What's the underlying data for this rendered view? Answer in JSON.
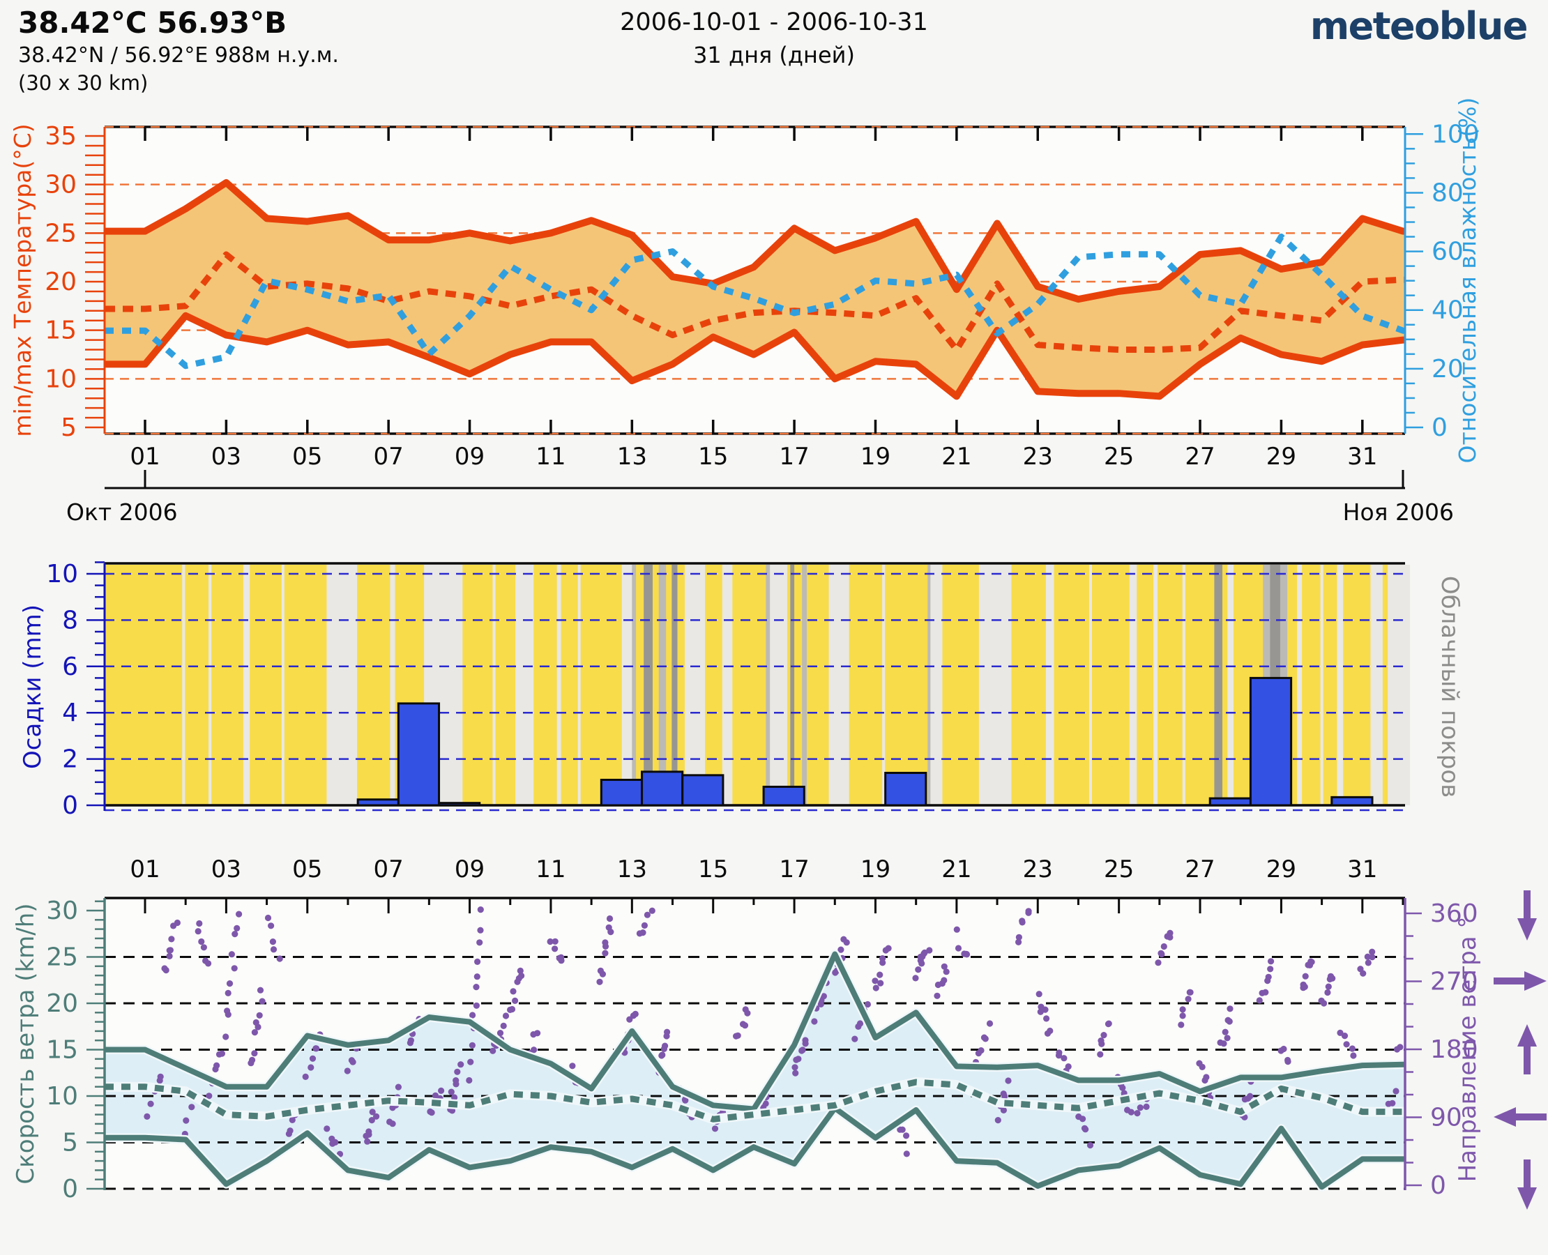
{
  "header": {
    "title": "38.42°С 56.93°В",
    "coords": "38.42°N / 56.92°E   988м н.у.м.",
    "grid_size": "(30 x 30 km)",
    "period": "2006-10-01 - 2006-10-31",
    "duration": "31 дня (дней)",
    "logo": "meteoblue"
  },
  "x_axis": {
    "day_labels": [
      "01",
      "03",
      "05",
      "07",
      "09",
      "11",
      "13",
      "15",
      "17",
      "19",
      "21",
      "23",
      "25",
      "27",
      "29",
      "31"
    ],
    "month_left": "Окт 2006",
    "month_right": "Ноя 2006"
  },
  "colors": {
    "page_bg": "#f6f6f4",
    "plot_bg": "#fcfcfa",
    "temp_line": "#e8420b",
    "temp_band": "#f5c577",
    "temp_grid": "#f0763a",
    "humidity": "#2f9fdf",
    "precip_bar": "#3351e3",
    "precip_axis": "#1414b8",
    "precip_grid": "#2a2ad0",
    "sun_yellow": "#f8dc4a",
    "cloud_light": "#e9e8e5",
    "cloud_medium": "#bcbab6",
    "cloud_dark": "#989692",
    "cloud_label": "#8c8c8a",
    "wind_line": "#4e7d78",
    "wind_band": "#ddeef6",
    "wind_dir": "#7e57ab",
    "frame": "#0b0b0b",
    "logo_blue": "#1c4068"
  },
  "chart_data": [
    {
      "id": "temperature_humidity",
      "type": "area",
      "y_left_label": "min/max Температура(°C)",
      "y_left_ticks": [
        5,
        10,
        15,
        20,
        25,
        30,
        35
      ],
      "y_left_range": [
        4.3,
        36.0
      ],
      "y_right_label": "Относительная влажность(%)",
      "y_right_ticks": [
        0,
        20,
        40,
        60,
        80,
        100
      ],
      "y_right_range": [
        0,
        100
      ],
      "days": [
        1,
        2,
        3,
        4,
        5,
        6,
        7,
        8,
        9,
        10,
        11,
        12,
        13,
        14,
        15,
        16,
        17,
        18,
        19,
        20,
        21,
        22,
        23,
        24,
        25,
        26,
        27,
        28,
        29,
        30,
        31,
        32
      ],
      "t_max": [
        25.2,
        27.5,
        30.2,
        26.5,
        26.2,
        26.8,
        24.3,
        24.3,
        25.0,
        24.2,
        25.0,
        26.3,
        24.8,
        20.5,
        19.8,
        21.5,
        25.5,
        23.2,
        24.5,
        26.2,
        19.2,
        26.0,
        19.5,
        18.2,
        19.0,
        19.5,
        22.8,
        23.2,
        21.3,
        22.0,
        26.5,
        25.2
      ],
      "t_min": [
        11.5,
        16.5,
        14.5,
        13.8,
        15.0,
        13.5,
        13.8,
        12.2,
        10.5,
        12.5,
        13.8,
        13.8,
        9.8,
        11.5,
        14.3,
        12.5,
        14.8,
        10.0,
        11.8,
        11.5,
        8.2,
        15.0,
        8.7,
        8.5,
        8.5,
        8.2,
        11.5,
        14.2,
        12.5,
        11.8,
        13.5,
        14.0
      ],
      "t_mean": [
        17.2,
        17.5,
        22.8,
        19.5,
        19.8,
        19.3,
        18.0,
        19.0,
        18.5,
        17.5,
        18.5,
        19.2,
        16.5,
        14.5,
        16.0,
        16.8,
        17.0,
        16.8,
        16.5,
        18.3,
        13.0,
        19.8,
        13.5,
        13.2,
        13.0,
        13.0,
        13.2,
        17.0,
        16.5,
        16.0,
        20.0,
        20.2
      ],
      "humidity": [
        33,
        21,
        24,
        50,
        47,
        43,
        45,
        25,
        38,
        55,
        47,
        40,
        57,
        60,
        48,
        44,
        39,
        42,
        50,
        49,
        52,
        32,
        42,
        58,
        59,
        59,
        45,
        42,
        65,
        52,
        38,
        33
      ]
    },
    {
      "id": "precipitation_cloud",
      "type": "bar",
      "y_left_label": "Осадки (mm)",
      "y_left_ticks": [
        0,
        2,
        4,
        6,
        8,
        10
      ],
      "y_left_range": [
        0,
        10.5
      ],
      "y_right_label": "Облачный покров",
      "bars": [
        {
          "day": 7,
          "mm": 0.25
        },
        {
          "day": 8,
          "mm": 4.4
        },
        {
          "day": 9,
          "mm": 0.1
        },
        {
          "day": 13,
          "mm": 1.1
        },
        {
          "day": 14,
          "mm": 1.45
        },
        {
          "day": 15,
          "mm": 1.3
        },
        {
          "day": 17,
          "mm": 0.8
        },
        {
          "day": 20,
          "mm": 1.4
        },
        {
          "day": 28,
          "mm": 0.3
        },
        {
          "day": 29,
          "mm": 5.5
        },
        {
          "day": 31,
          "mm": 0.35
        }
      ],
      "cloud_bands": {
        "light": [
          [
            1.95,
            0.06
          ],
          [
            2.6,
            0.06
          ],
          [
            3.5,
            0.16
          ],
          [
            4.4,
            0.06
          ],
          [
            5.85,
            0.75
          ],
          [
            7.1,
            0.12
          ],
          [
            8.35,
            0.95
          ],
          [
            9.6,
            0.06
          ],
          [
            10.35,
            0.45
          ],
          [
            11.2,
            0.1
          ],
          [
            11.7,
            0.06
          ],
          [
            12.9,
            0.3
          ],
          [
            14.55,
            0.5
          ],
          [
            15.35,
            0.25
          ],
          [
            16.6,
            0.45
          ],
          [
            18.1,
            0.5
          ],
          [
            19.2,
            0.06
          ],
          [
            20.5,
            0.3
          ],
          [
            21.95,
            0.8
          ],
          [
            23.3,
            0.2
          ],
          [
            24.3,
            0.06
          ],
          [
            25.35,
            0.18
          ],
          [
            25.9,
            0.1
          ],
          [
            26.6,
            0.06
          ],
          [
            27.75,
            0.15
          ],
          [
            29.45,
            0.12
          ],
          [
            30.0,
            0.06
          ],
          [
            30.45,
            0.15
          ],
          [
            31.35,
            0.3
          ],
          [
            31.9,
            0.55
          ]
        ],
        "medium": [
          [
            13.05,
            0.1
          ],
          [
            13.75,
            0.18
          ],
          [
            16.35,
            0.1
          ],
          [
            17.25,
            0.12
          ],
          [
            20.32,
            0.07
          ],
          [
            28.85,
            0.6
          ]
        ],
        "dark": [
          [
            13.4,
            0.22
          ],
          [
            14.05,
            0.14
          ],
          [
            16.95,
            0.1
          ],
          [
            27.45,
            0.2
          ],
          [
            28.85,
            0.25
          ]
        ]
      }
    },
    {
      "id": "wind",
      "type": "line",
      "y_left_label": "Скорость ветра (km/h)",
      "y_left_ticks": [
        0,
        5,
        10,
        15,
        20,
        25,
        30
      ],
      "y_left_range": [
        -0.5,
        31.3
      ],
      "y_right_label": "Направление ветра °",
      "y_right_ticks": [
        0,
        90,
        180,
        270,
        360
      ],
      "w_max": [
        15.0,
        13.0,
        11.0,
        11.0,
        16.5,
        15.5,
        16.0,
        18.5,
        18.0,
        15.0,
        13.5,
        10.8,
        17.0,
        11.0,
        9.0,
        8.6,
        15.5,
        25.3,
        16.3,
        19.0,
        13.2,
        13.1,
        13.3,
        11.7,
        11.7,
        12.4,
        10.5,
        12.0,
        12.0,
        12.7,
        13.3,
        13.4
      ],
      "w_min": [
        5.5,
        5.3,
        0.5,
        3.0,
        6.0,
        2.0,
        1.2,
        4.2,
        2.3,
        3.0,
        4.5,
        4.0,
        2.3,
        4.3,
        2.0,
        4.5,
        2.7,
        8.7,
        5.5,
        8.5,
        3.0,
        2.8,
        0.3,
        2.0,
        2.5,
        4.4,
        1.5,
        0.5,
        6.5,
        0.2,
        3.2,
        3.2
      ],
      "w_mean": [
        11.0,
        10.5,
        8.0,
        7.8,
        8.5,
        9.0,
        9.5,
        9.3,
        9.0,
        10.2,
        10.0,
        9.3,
        9.7,
        9.0,
        7.5,
        8.0,
        8.5,
        9.0,
        10.5,
        11.5,
        11.2,
        9.3,
        9.0,
        8.7,
        9.5,
        10.3,
        9.5,
        8.3,
        10.8,
        9.8,
        8.3,
        8.3
      ],
      "direction_runs": [
        [
          1.1,
          100,
          150,
          6
        ],
        [
          1.5,
          280,
          350,
          8
        ],
        [
          1.9,
          60,
          120,
          5
        ],
        [
          2.3,
          340,
          295,
          6
        ],
        [
          2.6,
          125,
          180,
          7
        ],
        [
          3.0,
          200,
          360,
          10
        ],
        [
          3.6,
          155,
          260,
          9
        ],
        [
          4.0,
          355,
          300,
          5
        ],
        [
          4.5,
          60,
          100,
          5
        ],
        [
          5.0,
          150,
          200,
          6
        ],
        [
          5.5,
          80,
          40,
          5
        ],
        [
          6.0,
          150,
          190,
          6
        ],
        [
          6.4,
          60,
          100,
          7
        ],
        [
          7.0,
          80,
          130,
          6
        ],
        [
          7.5,
          180,
          225,
          6
        ],
        [
          8.0,
          90,
          130,
          7
        ],
        [
          8.5,
          100,
          155,
          8
        ],
        [
          9.0,
          145,
          360,
          12
        ],
        [
          9.6,
          170,
          220,
          7
        ],
        [
          10.0,
          230,
          285,
          8
        ],
        [
          10.4,
          170,
          200,
          5
        ],
        [
          11.0,
          330,
          290,
          6
        ],
        [
          11.5,
          150,
          110,
          5
        ],
        [
          12.2,
          270,
          355,
          9
        ],
        [
          12.8,
          180,
          230,
          7
        ],
        [
          13.2,
          330,
          360,
          5
        ],
        [
          13.6,
          150,
          200,
          8
        ],
        [
          14.2,
          120,
          90,
          5
        ],
        [
          15.0,
          70,
          110,
          6
        ],
        [
          15.6,
          200,
          230,
          6
        ],
        [
          16.2,
          100,
          140,
          7
        ],
        [
          17.0,
          150,
          190,
          8
        ],
        [
          17.5,
          220,
          260,
          6
        ],
        [
          18.0,
          280,
          330,
          7
        ],
        [
          18.5,
          200,
          240,
          6
        ],
        [
          19.0,
          260,
          310,
          8
        ],
        [
          19.5,
          90,
          50,
          5
        ],
        [
          20.0,
          280,
          320,
          9
        ],
        [
          20.5,
          250,
          290,
          6
        ],
        [
          21.0,
          330,
          300,
          5
        ],
        [
          21.5,
          170,
          210,
          6
        ],
        [
          22.0,
          90,
          130,
          6
        ],
        [
          22.5,
          330,
          360,
          6
        ],
        [
          23.0,
          250,
          200,
          7
        ],
        [
          23.5,
          180,
          150,
          5
        ],
        [
          24.0,
          90,
          60,
          5
        ],
        [
          24.5,
          180,
          215,
          6
        ],
        [
          25.0,
          140,
          100,
          6
        ],
        [
          25.5,
          90,
          120,
          5
        ],
        [
          26.0,
          300,
          340,
          7
        ],
        [
          26.5,
          220,
          260,
          6
        ],
        [
          27.0,
          160,
          120,
          6
        ],
        [
          27.5,
          180,
          225,
          7
        ],
        [
          28.0,
          90,
          130,
          6
        ],
        [
          28.5,
          250,
          290,
          7
        ],
        [
          29.0,
          180,
          140,
          6
        ],
        [
          29.5,
          260,
          300,
          8
        ],
        [
          30.0,
          240,
          280,
          7
        ],
        [
          30.5,
          200,
          170,
          5
        ],
        [
          31.0,
          280,
          310,
          6
        ],
        [
          31.5,
          90,
          125,
          5
        ],
        [
          31.9,
          180,
          210,
          5
        ]
      ]
    }
  ]
}
